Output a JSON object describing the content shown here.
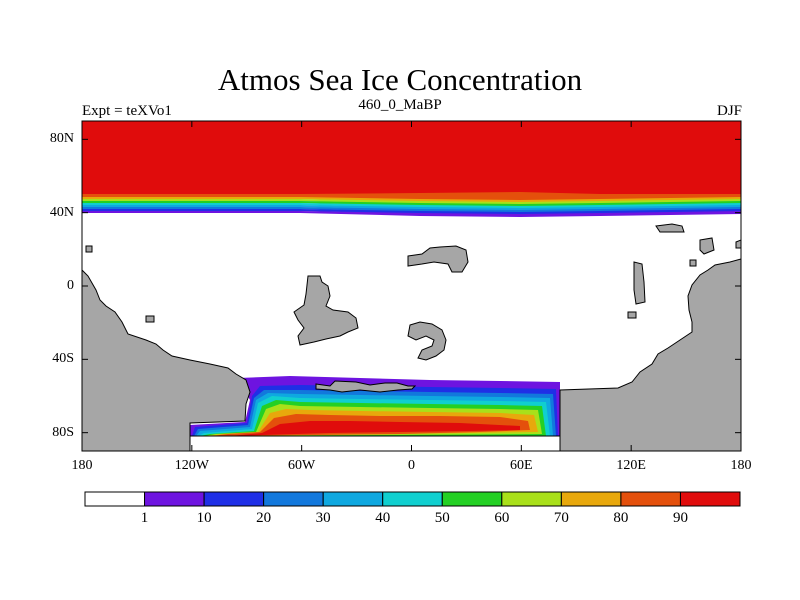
{
  "title": "Atmos Sea Ice Concentration",
  "subtitle_left": "Expt = teXVo1",
  "subtitle_center": "460_0_MaBP",
  "subtitle_right": "DJF",
  "lat_ticks": [
    {
      "label": "80N",
      "lat": 80
    },
    {
      "label": "40N",
      "lat": 40
    },
    {
      "label": "0",
      "lat": 0
    },
    {
      "label": "40S",
      "lat": -40
    },
    {
      "label": "80S",
      "lat": -80
    }
  ],
  "lon_ticks": [
    {
      "label": "180",
      "lon": -180
    },
    {
      "label": "120W",
      "lon": -120
    },
    {
      "label": "60W",
      "lon": -60
    },
    {
      "label": "0",
      "lon": 0
    },
    {
      "label": "60E",
      "lon": 60
    },
    {
      "label": "120E",
      "lon": 120
    },
    {
      "label": "180",
      "lon": 180
    }
  ],
  "colors": {
    "land": "#a6a6a6",
    "no_ice": "#ffffff",
    "levels": [
      "#ffffff",
      "#6e14e0",
      "#1f2fe6",
      "#1278dc",
      "#0fa8e0",
      "#10cfcf",
      "#24d024",
      "#a9e01a",
      "#e8a80c",
      "#e4500c",
      "#e00c0c"
    ]
  },
  "legend": {
    "labels": [
      "1",
      "10",
      "20",
      "30",
      "40",
      "50",
      "60",
      "70",
      "80",
      "90"
    ]
  },
  "chart_data": {
    "type": "heatmap",
    "title": "Atmos Sea Ice Concentration",
    "xlim": [
      -180,
      180
    ],
    "ylim": [
      -90,
      90
    ],
    "x_axis": "longitude",
    "y_axis": "latitude",
    "contour_levels": [
      1,
      10,
      20,
      30,
      40,
      50,
      60,
      70,
      80,
      90
    ],
    "northern_ice": {
      "full_cover_lat_range": [
        48,
        90
      ],
      "edge_lat_range": [
        38,
        48
      ],
      "concentration_above": 90
    },
    "southern_ice": {
      "lon_range": [
        -120,
        80
      ],
      "lat_range": [
        -82,
        -52
      ],
      "max_concentration": 90
    },
    "grid": false
  }
}
